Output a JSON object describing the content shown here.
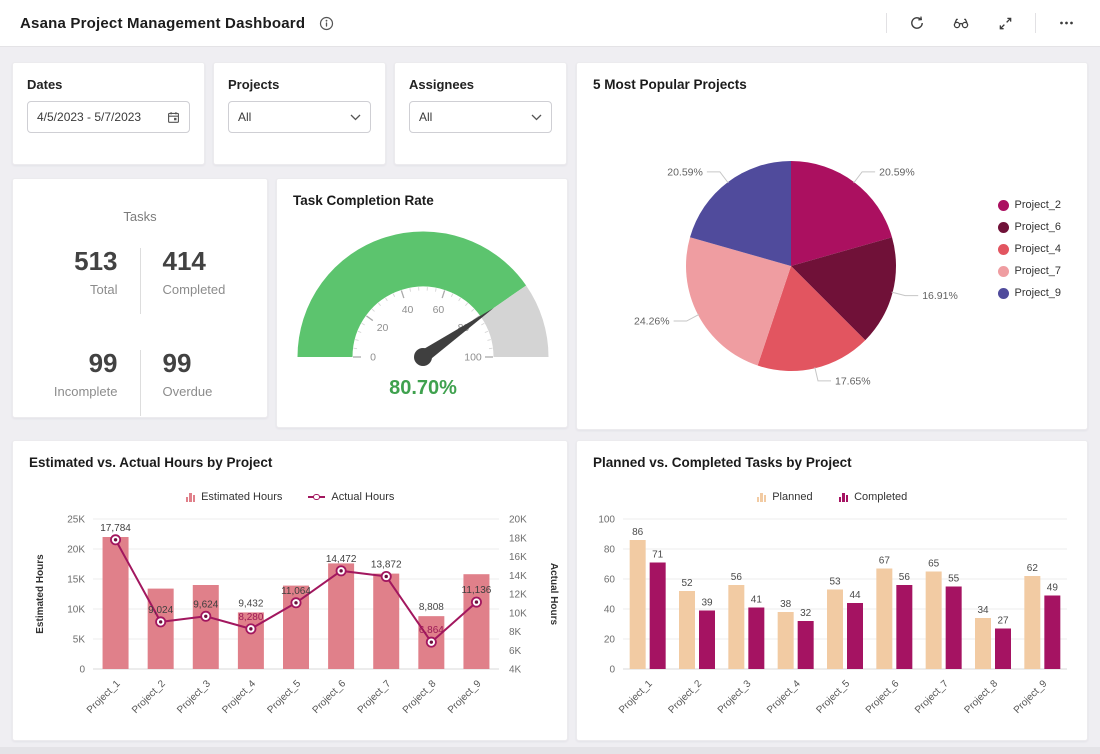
{
  "header": {
    "title": "Asana Project Management Dashboard",
    "icon_names": [
      "info-icon",
      "refresh-icon",
      "preview-icon",
      "fullscreen-icon",
      "more-options-icon"
    ]
  },
  "filters": {
    "dates": {
      "label": "Dates",
      "value": "4/5/2023 - 5/7/2023",
      "icon": "calendar-icon"
    },
    "projects": {
      "label": "Projects",
      "value": "All",
      "icon": "chevron-down-icon"
    },
    "assignees": {
      "label": "Assignees",
      "value": "All",
      "icon": "chevron-down-icon"
    }
  },
  "tasks_summary": {
    "title": "Tasks",
    "stats": [
      {
        "value": "513",
        "label": "Total"
      },
      {
        "value": "414",
        "label": "Completed"
      },
      {
        "value": "99",
        "label": "Incomplete"
      },
      {
        "value": "99",
        "label": "Overdue"
      }
    ]
  },
  "chart_data": [
    {
      "id": "completion_gauge",
      "type": "gauge",
      "title": "Task Completion Rate",
      "value": 80.7,
      "display_value": "80.70%",
      "min": 0,
      "max": 100,
      "ticks": [
        0,
        20,
        40,
        60,
        80,
        100
      ],
      "color_filled": "#5cc46e",
      "color_empty": "#d4d4d4",
      "value_color": "#3fa14e",
      "needle_color": "#3f3f3f"
    },
    {
      "id": "popular_projects_pie",
      "type": "pie",
      "title": "5 Most Popular Projects",
      "legend_position": "right",
      "slices": [
        {
          "name": "Project_2",
          "pct": 20.59,
          "label": "20.59%",
          "color": "#ab1060"
        },
        {
          "name": "Project_6",
          "pct": 16.91,
          "label": "16.91%",
          "color": "#701138"
        },
        {
          "name": "Project_4",
          "pct": 17.65,
          "label": "17.65%",
          "color": "#e25560"
        },
        {
          "name": "Project_7",
          "pct": 24.26,
          "label": "24.26%",
          "color": "#ef9da1"
        },
        {
          "name": "Project_9",
          "pct": 20.59,
          "label": "20.59%",
          "color": "#504b9c"
        }
      ]
    },
    {
      "id": "hours_combo",
      "type": "bar+line",
      "title": "Estimated vs. Actual Hours by Project",
      "categories": [
        "Project_1",
        "Project_2",
        "Project_3",
        "Project_4",
        "Project_5",
        "Project_6",
        "Project_7",
        "Project_8",
        "Project_9"
      ],
      "series": [
        {
          "name": "Estimated Hours",
          "type": "bar",
          "axis": "left",
          "color": "#e0808a",
          "values": [
            22000,
            13400,
            14000,
            9432,
            13900,
            17600,
            15900,
            8808,
            15800
          ],
          "labels": [
            null,
            null,
            null,
            "9,432",
            null,
            null,
            null,
            "8,808",
            null
          ]
        },
        {
          "name": "Actual Hours",
          "type": "line",
          "axis": "right",
          "color": "#a2175f",
          "values": [
            17784,
            9024,
            9624,
            8280,
            11064,
            14472,
            13872,
            6864,
            11136
          ],
          "labels": [
            "17,784",
            "9,024",
            "9,624",
            "8,280",
            "11,064",
            "14,472",
            "13,872",
            "6,864",
            "11,136"
          ],
          "label_color_overrides": {
            "3": "#9c1a56",
            "7": "#9c1a56"
          }
        }
      ],
      "left_axis": {
        "title": "Estimated Hours",
        "min": 0,
        "max": 25000,
        "ticks": [
          "0",
          "5K",
          "10K",
          "15K",
          "20K",
          "25K"
        ]
      },
      "right_axis": {
        "title": "Actual Hours",
        "min": 4000,
        "max": 20000,
        "ticks": [
          "4K",
          "6K",
          "8K",
          "10K",
          "12K",
          "14K",
          "16K",
          "18K",
          "20K"
        ]
      },
      "grid": true,
      "legend_position": "top"
    },
    {
      "id": "tasks_grouped",
      "type": "bar",
      "title": "Planned vs. Completed Tasks by Project",
      "categories": [
        "Project_1",
        "Project_2",
        "Project_3",
        "Project_4",
        "Project_5",
        "Project_6",
        "Project_7",
        "Project_8",
        "Project_9"
      ],
      "series": [
        {
          "name": "Planned",
          "color": "#f2cba3",
          "values": [
            86,
            52,
            56,
            38,
            53,
            67,
            65,
            34,
            62
          ]
        },
        {
          "name": "Completed",
          "color": "#a51362",
          "values": [
            71,
            39,
            41,
            32,
            44,
            56,
            55,
            27,
            49
          ]
        }
      ],
      "y_axis": {
        "min": 0,
        "max": 100,
        "ticks": [
          "0",
          "20",
          "40",
          "60",
          "80",
          "100"
        ]
      },
      "grid": true,
      "legend_position": "top"
    }
  ]
}
